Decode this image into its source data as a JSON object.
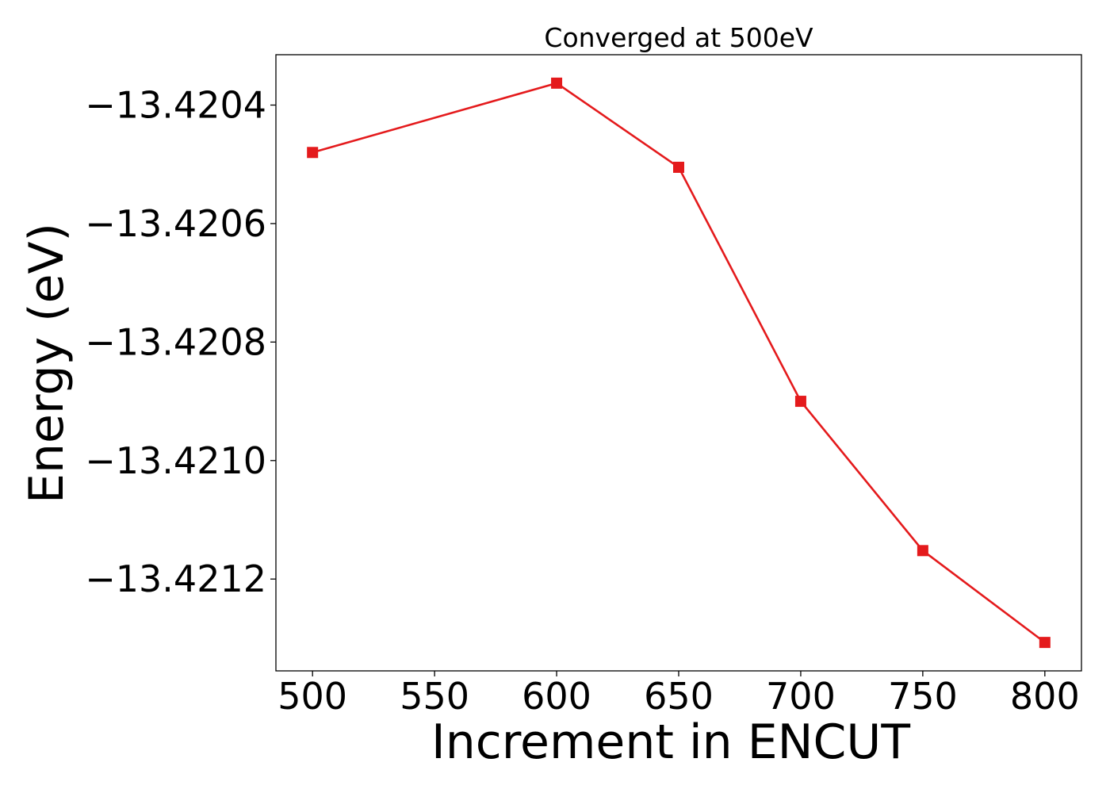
{
  "chart_data": {
    "type": "line",
    "title": "Converged at 500eV",
    "xlabel": "Increment in ENCUT",
    "ylabel": "Energy (eV)",
    "x": [
      500,
      600,
      650,
      700,
      750,
      800
    ],
    "series": [
      {
        "values": [
          -13.42048,
          -13.420363,
          -13.420505,
          -13.4209,
          -13.421152,
          -13.421307
        ],
        "color": "#e41a1c",
        "marker": "square"
      }
    ],
    "xlim": [
      485,
      815
    ],
    "ylim": [
      -13.421355,
      -13.420315
    ],
    "xticks": [
      500,
      550,
      600,
      650,
      700,
      750,
      800
    ],
    "xtick_labels": [
      "500",
      "550",
      "600",
      "650",
      "700",
      "750",
      "800"
    ],
    "yticks": [
      -13.4204,
      -13.4206,
      -13.4208,
      -13.421,
      -13.4212
    ],
    "ytick_labels": [
      "−13.4204",
      "−13.4206",
      "−13.4208",
      "−13.4210",
      "−13.4212"
    ],
    "grid": false,
    "legend": "none"
  }
}
